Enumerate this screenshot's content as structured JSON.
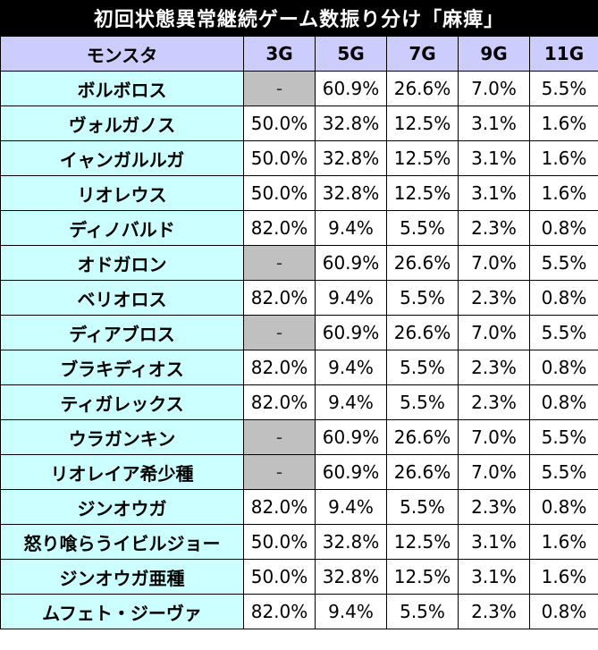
{
  "title": "初回状態異常継続ゲーム数振り分け「麻痺」",
  "headers": [
    "モンスタ",
    "3G",
    "5G",
    "7G",
    "9G",
    "11G"
  ],
  "rows": [
    {
      "name": "ボルボロス",
      "values": [
        "-",
        "60.9%",
        "26.6%",
        "7.0%",
        "5.5%"
      ]
    },
    {
      "name": "ヴォルガノス",
      "values": [
        "50.0%",
        "32.8%",
        "12.5%",
        "3.1%",
        "1.6%"
      ]
    },
    {
      "name": "イャンガルルガ",
      "values": [
        "50.0%",
        "32.8%",
        "12.5%",
        "3.1%",
        "1.6%"
      ]
    },
    {
      "name": "リオレウス",
      "values": [
        "50.0%",
        "32.8%",
        "12.5%",
        "3.1%",
        "1.6%"
      ]
    },
    {
      "name": "ディノバルド",
      "values": [
        "82.0%",
        "9.4%",
        "5.5%",
        "2.3%",
        "0.8%"
      ]
    },
    {
      "name": "オドガロン",
      "values": [
        "-",
        "60.9%",
        "26.6%",
        "7.0%",
        "5.5%"
      ]
    },
    {
      "name": "ベリオロス",
      "values": [
        "82.0%",
        "9.4%",
        "5.5%",
        "2.3%",
        "0.8%"
      ]
    },
    {
      "name": "ディアブロス",
      "values": [
        "-",
        "60.9%",
        "26.6%",
        "7.0%",
        "5.5%"
      ]
    },
    {
      "name": "ブラキディオス",
      "values": [
        "82.0%",
        "9.4%",
        "5.5%",
        "2.3%",
        "0.8%"
      ]
    },
    {
      "name": "ティガレックス",
      "values": [
        "82.0%",
        "9.4%",
        "5.5%",
        "2.3%",
        "0.8%"
      ]
    },
    {
      "name": "ウラガンキン",
      "values": [
        "-",
        "60.9%",
        "26.6%",
        "7.0%",
        "5.5%"
      ]
    },
    {
      "name": "リオレイア希少種",
      "values": [
        "-",
        "60.9%",
        "26.6%",
        "7.0%",
        "5.5%"
      ]
    },
    {
      "name": "ジンオウガ",
      "values": [
        "82.0%",
        "9.4%",
        "5.5%",
        "2.3%",
        "0.8%"
      ]
    },
    {
      "name": "怒り喰らうイビルジョー",
      "values": [
        "50.0%",
        "32.8%",
        "12.5%",
        "3.1%",
        "1.6%"
      ]
    },
    {
      "name": "ジンオウガ亜種",
      "values": [
        "50.0%",
        "32.8%",
        "12.5%",
        "3.1%",
        "1.6%"
      ]
    },
    {
      "name": "ムフェト・ジーヴァ",
      "values": [
        "82.0%",
        "9.4%",
        "5.5%",
        "2.3%",
        "0.8%"
      ]
    }
  ]
}
